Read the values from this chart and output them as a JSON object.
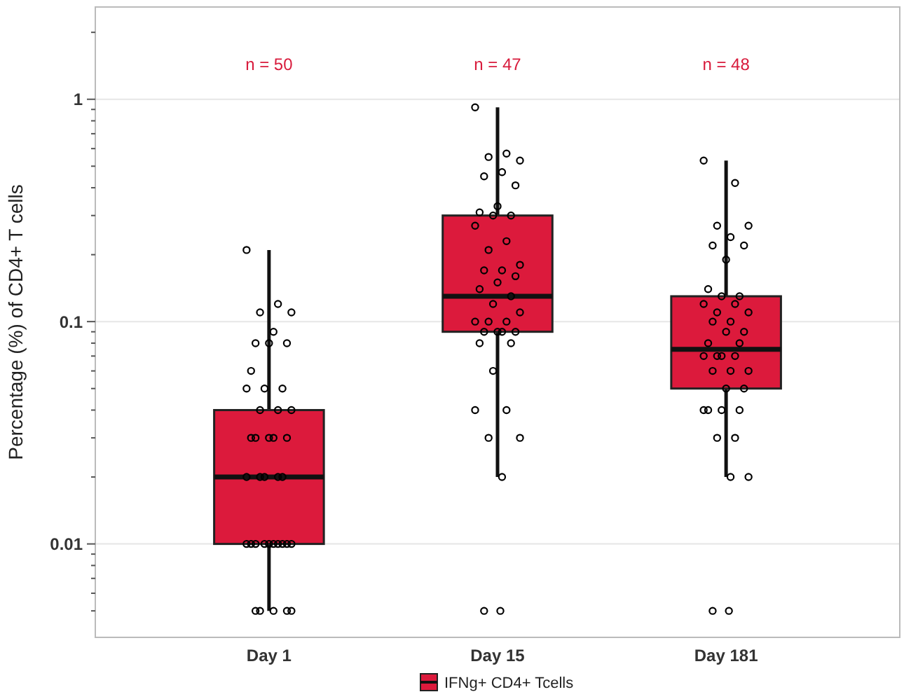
{
  "chart_data": {
    "type": "box",
    "ylabel": "Percentage (%) of CD4+ T cells",
    "categories": [
      "Day 1",
      "Day 15",
      "Day 181"
    ],
    "log": true,
    "grid": "y",
    "legend": "bottom",
    "marker": "circle",
    "ylim": [
      0.0038,
      2.6
    ],
    "yticks": [
      {
        "value": 0.005,
        "label": null
      },
      {
        "value": 0.006,
        "label": null
      },
      {
        "value": 0.007,
        "label": null
      },
      {
        "value": 0.008,
        "label": null
      },
      {
        "value": 0.009,
        "label": null
      },
      {
        "value": 0.01,
        "label": "0.01"
      },
      {
        "value": 0.02,
        "label": null
      },
      {
        "value": 0.03,
        "label": null
      },
      {
        "value": 0.04,
        "label": null
      },
      {
        "value": 0.05,
        "label": null
      },
      {
        "value": 0.06,
        "label": null
      },
      {
        "value": 0.07,
        "label": null
      },
      {
        "value": 0.08,
        "label": null
      },
      {
        "value": 0.09,
        "label": null
      },
      {
        "value": 0.1,
        "label": "0.1"
      },
      {
        "value": 0.2,
        "label": null
      },
      {
        "value": 0.3,
        "label": null
      },
      {
        "value": 0.4,
        "label": null
      },
      {
        "value": 0.5,
        "label": null
      },
      {
        "value": 0.6,
        "label": null
      },
      {
        "value": 0.7,
        "label": null
      },
      {
        "value": 0.8,
        "label": null
      },
      {
        "value": 0.9,
        "label": null
      },
      {
        "value": 1,
        "label": "1"
      },
      {
        "value": 2,
        "label": null
      }
    ],
    "series": [
      {
        "name": "IFNg+ CD4+ Tcells",
        "color": "#dc1a3c",
        "boxes": [
          {
            "low": 0.005,
            "q1": 0.01,
            "median": 0.02,
            "q3": 0.04,
            "high": 0.21
          },
          {
            "low": 0.02,
            "q1": 0.09,
            "median": 0.13,
            "q3": 0.3,
            "high": 0.92,
            "outliers": [
              0.005
            ]
          },
          {
            "low": 0.02,
            "q1": 0.05,
            "median": 0.075,
            "q3": 0.13,
            "high": 0.53,
            "outliers": [
              0.005
            ]
          }
        ]
      },
      {
        "type": "scatter",
        "color": "#000000",
        "x": [
          "Day 1",
          "Day 1",
          "Day 1",
          "Day 1",
          "Day 1",
          "Day 1",
          "Day 1",
          "Day 1",
          "Day 1",
          "Day 1",
          "Day 1",
          "Day 1",
          "Day 1",
          "Day 1",
          "Day 1",
          "Day 1",
          "Day 1",
          "Day 1",
          "Day 1",
          "Day 1",
          "Day 1",
          "Day 1",
          "Day 1",
          "Day 1",
          "Day 1",
          "Day 1",
          "Day 1",
          "Day 1",
          "Day 1",
          "Day 1",
          "Day 1",
          "Day 1",
          "Day 1",
          "Day 1",
          "Day 1",
          "Day 1",
          "Day 1",
          "Day 1",
          "Day 1",
          "Day 1",
          "Day 15",
          "Day 15",
          "Day 15",
          "Day 15",
          "Day 15",
          "Day 15",
          "Day 15",
          "Day 15",
          "Day 15",
          "Day 15",
          "Day 15",
          "Day 15",
          "Day 15",
          "Day 15",
          "Day 15",
          "Day 15",
          "Day 15",
          "Day 15",
          "Day 15",
          "Day 15",
          "Day 15",
          "Day 15",
          "Day 15",
          "Day 15",
          "Day 15",
          "Day 15",
          "Day 15",
          "Day 15",
          "Day 15",
          "Day 15",
          "Day 15",
          "Day 15",
          "Day 15",
          "Day 15",
          "Day 15",
          "Day 15",
          "Day 15",
          "Day 15",
          "Day 15",
          "Day 181",
          "Day 181",
          "Day 181",
          "Day 181",
          "Day 181",
          "Day 181",
          "Day 181",
          "Day 181",
          "Day 181",
          "Day 181",
          "Day 181",
          "Day 181",
          "Day 181",
          "Day 181",
          "Day 181",
          "Day 181",
          "Day 181",
          "Day 181",
          "Day 181",
          "Day 181",
          "Day 181",
          "Day 181",
          "Day 181",
          "Day 181",
          "Day 181",
          "Day 181",
          "Day 181",
          "Day 181",
          "Day 181",
          "Day 181",
          "Day 181",
          "Day 181",
          "Day 181",
          "Day 181",
          "Day 181",
          "Day 181",
          "Day 181",
          "Day 181",
          "Day 181"
        ],
        "values": [
          0.21,
          0.12,
          0.11,
          0.11,
          0.09,
          0.08,
          0.08,
          0.08,
          0.06,
          0.05,
          0.05,
          0.05,
          0.04,
          0.04,
          0.04,
          0.03,
          0.03,
          0.03,
          0.03,
          0.03,
          0.02,
          0.02,
          0.02,
          0.02,
          0.02,
          0.01,
          0.01,
          0.01,
          0.01,
          0.01,
          0.01,
          0.01,
          0.01,
          0.01,
          0.01,
          0.005,
          0.005,
          0.005,
          0.005,
          0.005,
          0.92,
          0.57,
          0.55,
          0.53,
          0.47,
          0.45,
          0.41,
          0.33,
          0.31,
          0.3,
          0.3,
          0.27,
          0.23,
          0.21,
          0.18,
          0.17,
          0.17,
          0.16,
          0.15,
          0.14,
          0.13,
          0.12,
          0.1,
          0.1,
          0.1,
          0.11,
          0.09,
          0.09,
          0.09,
          0.09,
          0.08,
          0.08,
          0.06,
          0.04,
          0.04,
          0.03,
          0.03,
          0.02,
          0.005,
          0.53,
          0.42,
          0.27,
          0.27,
          0.24,
          0.22,
          0.22,
          0.19,
          0.14,
          0.13,
          0.13,
          0.12,
          0.12,
          0.11,
          0.11,
          0.1,
          0.1,
          0.09,
          0.09,
          0.08,
          0.08,
          0.07,
          0.07,
          0.07,
          0.07,
          0.06,
          0.06,
          0.06,
          0.05,
          0.05,
          0.04,
          0.04,
          0.04,
          0.04,
          0.03,
          0.03,
          0.02,
          0.02,
          0.005
        ]
      }
    ],
    "annotations": [
      "n = 50",
      "n = 47",
      "n = 48"
    ]
  }
}
